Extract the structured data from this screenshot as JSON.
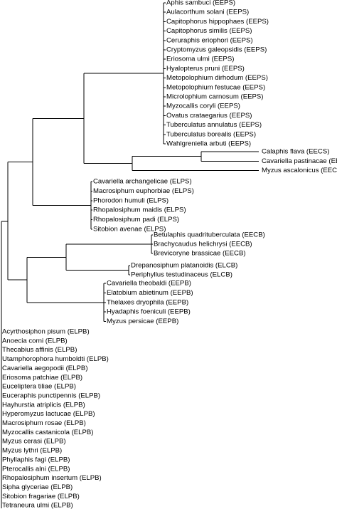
{
  "tree": {
    "clades": [
      {
        "id": "eeps",
        "taxa": [
          "Aphis sambuci (EEPS)",
          "Aulacorthum solani (EEPS)",
          "Capitophorus hippophaes (EEPS)",
          "Capitophorus similis (EEPS)",
          "Ceruraphis eriophori (EEPS)",
          "Cryptomyzus galeopsidis (EEPS)",
          "Eriosoma ulmi (EEPS)",
          "Hyalopterus pruni (EEPS)",
          "Metopolophium dirhodum (EEPS)",
          "Metopolophium festucae (EEPS)",
          "Microlophium carnosum (EEPS)",
          "Myzocallis coryli (EEPS)",
          "Ovatus crataegarius (EEPS)",
          "Tuberculatus annulatus (EEPS)",
          "Tuberculatus borealis (EEPS)",
          "Wahlgreniella arbuti (EEPS)"
        ]
      },
      {
        "id": "eecs",
        "taxa": [
          "Calaphis flava (EECS)",
          "Cavariella pastinacae (EECS)",
          "Myzus ascalonicus (EECS)"
        ]
      },
      {
        "id": "elps",
        "taxa": [
          "Cavariella archangelicae (ELPS)",
          "Macrosiphum euphorbiae (ELPS)",
          "Phorodon humuli (ELPS)",
          "Rhopalosiphum maidis (ELPS)",
          "Rhopalosiphum padi (ELPS)",
          "Sitobion avenae (ELPS)"
        ]
      },
      {
        "id": "eecb",
        "taxa": [
          "Betulaphis quadrituberculata (EECB)",
          "Brachycaudus helichrysi (EECB)",
          "Brevicoryne brassicae (EECB)"
        ]
      },
      {
        "id": "elcb",
        "taxa": [
          "Drepanosiphum platanoidis (ELCB)",
          "Periphyllus testudinaceus (ELCB)"
        ]
      },
      {
        "id": "eepb",
        "taxa": [
          "Cavariella theobaldi (EEPB)",
          "Elatobium abietinum (EEPB)",
          "Thelaxes dryophila (EEPB)",
          "Hyadaphis foeniculi (EEPB)",
          "Myzus persicae (EEPB)"
        ]
      },
      {
        "id": "elpb",
        "taxa": [
          "Acyrthosiphon pisum (ELPB)",
          "Anoecia corni (ELPB)",
          "Thecabius affinis (ELPB)",
          "Utamphorophora humboldti (ELPB)",
          "Cavariella aegopodii (ELPB)",
          "Eriosoma patchiae (ELPB)",
          "Euceliptera tiliae (ELPB)",
          "Euceraphis punctipennis (ELPB)",
          "Hayhurstia atriplicis (ELPB)",
          "Hyperomyzus lactucae (ELPB)",
          "Macrosiphum rosae (ELPB)",
          "Myzocallis castanicola (ELPB)",
          "Myzus cerasi (ELPB)",
          "Myzus lythri (ELPB)",
          "Phyllaphis fagi (ELPB)",
          "Pterocallis alni (ELPB)",
          "Rhopalosiphum insertum (ELPB)",
          "Sipha glyceriae (ELPB)",
          "Sitobion fragariae (ELPB)",
          "Tetraneura ulmi (ELPB)"
        ]
      }
    ]
  }
}
